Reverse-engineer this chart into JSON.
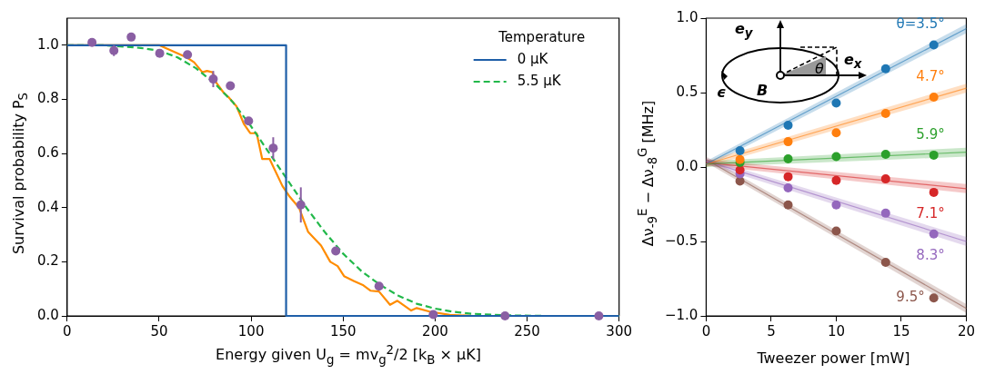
{
  "chart_data": [
    {
      "type": "line",
      "xlabel": "Energy given U$_{g}$ = mv$_{g}$$^{2}$/2 [k$_{B}$ × μK]",
      "ylabel": "Survival probability P$_{S}$",
      "legend_title": "Temperature",
      "legend": "top right",
      "xlim": [
        0,
        300
      ],
      "xticks": [
        0,
        50,
        100,
        150,
        200,
        250,
        300
      ],
      "ylim": [
        0,
        1.1
      ],
      "yticks": [
        {
          "value": 0,
          "label": "0.0"
        },
        0.2,
        0.4,
        0.6,
        0.8,
        {
          "value": 1,
          "label": "1.0"
        }
      ],
      "series": [
        {
          "name": "0 μK",
          "color": "#1f5fa8",
          "x": [
            0,
            119,
            119,
            300
          ],
          "values": [
            1,
            1,
            0,
            0
          ]
        },
        {
          "name": "5.5 μK",
          "color": "#22b84a",
          "line_style": "dashed",
          "x": [
            0,
            20,
            40,
            50,
            60,
            70,
            80,
            90,
            100,
            110,
            120,
            130,
            140,
            150,
            160,
            170,
            180,
            190,
            200,
            210,
            220,
            240,
            260,
            300
          ],
          "values": [
            1,
            1,
            0.99,
            0.98,
            0.955,
            0.915,
            0.86,
            0.79,
            0.7,
            0.6,
            0.5,
            0.4,
            0.31,
            0.23,
            0.165,
            0.115,
            0.075,
            0.045,
            0.027,
            0.015,
            0.008,
            0.002,
            0,
            0
          ]
        },
        {
          "color": "#ff8c00",
          "x": [
            0,
            50,
            65,
            69,
            73.5,
            76,
            79,
            81,
            85,
            88,
            92,
            96,
            99.5,
            103,
            106,
            110,
            117,
            121,
            126,
            131,
            138,
            143,
            147,
            150.5,
            156,
            161,
            165,
            169.5,
            175.5,
            179.5,
            187,
            190,
            197,
            208,
            221,
            300
          ],
          "values": [
            1,
            1,
            0.955,
            0.937,
            0.9,
            0.905,
            0.9,
            0.862,
            0.825,
            0.806,
            0.775,
            0.71,
            0.675,
            0.675,
            0.58,
            0.58,
            0.48,
            0.44,
            0.4,
            0.31,
            0.26,
            0.2,
            0.184,
            0.147,
            0.128,
            0.113,
            0.093,
            0.09,
            0.041,
            0.056,
            0.02,
            0.029,
            0.016,
            0.004,
            0,
            0
          ]
        },
        {
          "type": "scatter",
          "color": "#8a5fa3",
          "marker": "circle",
          "x": [
            13.5,
            25.4,
            34.8,
            50.3,
            65.4,
            79.4,
            88.7,
            98.6,
            112,
            127,
            146,
            169.5,
            199,
            238,
            289
          ],
          "values": [
            1.01,
            0.98,
            1.03,
            0.97,
            0.965,
            0.875,
            0.85,
            0.72,
            0.62,
            0.41,
            0.24,
            0.11,
            0.005,
            0,
            0
          ],
          "errors": [
            null,
            0.02,
            null,
            null,
            null,
            0.03,
            null,
            null,
            0.04,
            0.065,
            null,
            null,
            null,
            null,
            null
          ]
        }
      ]
    },
    {
      "type": "scatter",
      "xlabel": "Tweezer power [mW]",
      "ylabel": "Δν$_{-9}$$^{E}$ − Δν$_{-8}$$^{G}$ [MHz]",
      "xlim": [
        0,
        20
      ],
      "xticks": [
        0,
        5,
        10,
        15,
        20
      ],
      "ylim": [
        -1,
        1
      ],
      "yticks": [
        {
          "value": -1,
          "label": "−1.0"
        },
        {
          "value": -0.5,
          "label": "−0.5"
        },
        {
          "value": 0,
          "label": "0.0"
        },
        0.5,
        {
          "value": 1,
          "label": "1.0"
        }
      ],
      "annotations": [
        "e$_{y}$",
        "e$_{x}$",
        "θ",
        "B",
        "ϵ"
      ],
      "series": [
        {
          "type": "line",
          "color": "#1f77b4",
          "x": [
            0,
            20
          ],
          "values": [
            0.02,
            0.93
          ],
          "lower": [
            0,
            0.9
          ],
          "upper": [
            0.04,
            0.96
          ]
        },
        {
          "type": "line",
          "color": "#ff7f0e",
          "x": [
            0,
            20
          ],
          "values": [
            0.02,
            0.53
          ],
          "lower": [
            0,
            0.5
          ],
          "upper": [
            0.04,
            0.56
          ]
        },
        {
          "type": "line",
          "color": "#2ca02c",
          "x": [
            0,
            20
          ],
          "values": [
            0.02,
            0.1
          ],
          "lower": [
            0,
            0.07
          ],
          "upper": [
            0.04,
            0.13
          ]
        },
        {
          "type": "line",
          "color": "#d62728",
          "x": [
            0,
            20
          ],
          "values": [
            0.03,
            -0.145
          ],
          "lower": [
            0.01,
            -0.175
          ],
          "upper": [
            0.05,
            -0.115
          ]
        },
        {
          "type": "line",
          "color": "#9467bd",
          "x": [
            0,
            20
          ],
          "values": [
            0.04,
            -0.5
          ],
          "lower": [
            0.02,
            -0.53
          ],
          "upper": [
            0.06,
            -0.47
          ]
        },
        {
          "type": "line",
          "color": "#8c564b",
          "x": [
            0,
            20
          ],
          "values": [
            0.05,
            -0.95
          ],
          "lower": [
            0.03,
            -0.98
          ],
          "upper": [
            0.07,
            -0.92
          ]
        },
        {
          "name": "θ=3.5°",
          "color": "#1f77b4",
          "marker": "circle",
          "x": [
            2.6,
            6.3,
            10,
            13.8,
            17.5
          ],
          "values": [
            0.11,
            0.28,
            0.43,
            0.66,
            0.82
          ]
        },
        {
          "name": "4.7°",
          "color": "#ff7f0e",
          "marker": "circle",
          "x": [
            2.6,
            6.3,
            10,
            13.8,
            17.5
          ],
          "values": [
            0.05,
            0.17,
            0.23,
            0.36,
            0.47
          ]
        },
        {
          "name": "5.9°",
          "color": "#2ca02c",
          "marker": "circle",
          "x": [
            2.6,
            6.3,
            10,
            13.8,
            17.5
          ],
          "values": [
            0.03,
            0.055,
            0.07,
            0.085,
            0.08
          ]
        },
        {
          "name": "7.1°",
          "color": "#d62728",
          "marker": "circle",
          "x": [
            2.6,
            6.3,
            10,
            13.8,
            17.5
          ],
          "values": [
            -0.02,
            -0.065,
            -0.09,
            -0.08,
            -0.17
          ]
        },
        {
          "name": "8.3°",
          "color": "#9467bd",
          "marker": "circle",
          "x": [
            2.6,
            6.3,
            10,
            13.8,
            17.5
          ],
          "values": [
            -0.045,
            -0.14,
            -0.255,
            -0.31,
            -0.45
          ]
        },
        {
          "name": "9.5°",
          "color": "#8c564b",
          "marker": "circle",
          "x": [
            2.6,
            6.3,
            10,
            13.8,
            17.5
          ],
          "values": [
            -0.095,
            -0.255,
            -0.43,
            -0.64,
            -0.88
          ]
        }
      ]
    }
  ]
}
